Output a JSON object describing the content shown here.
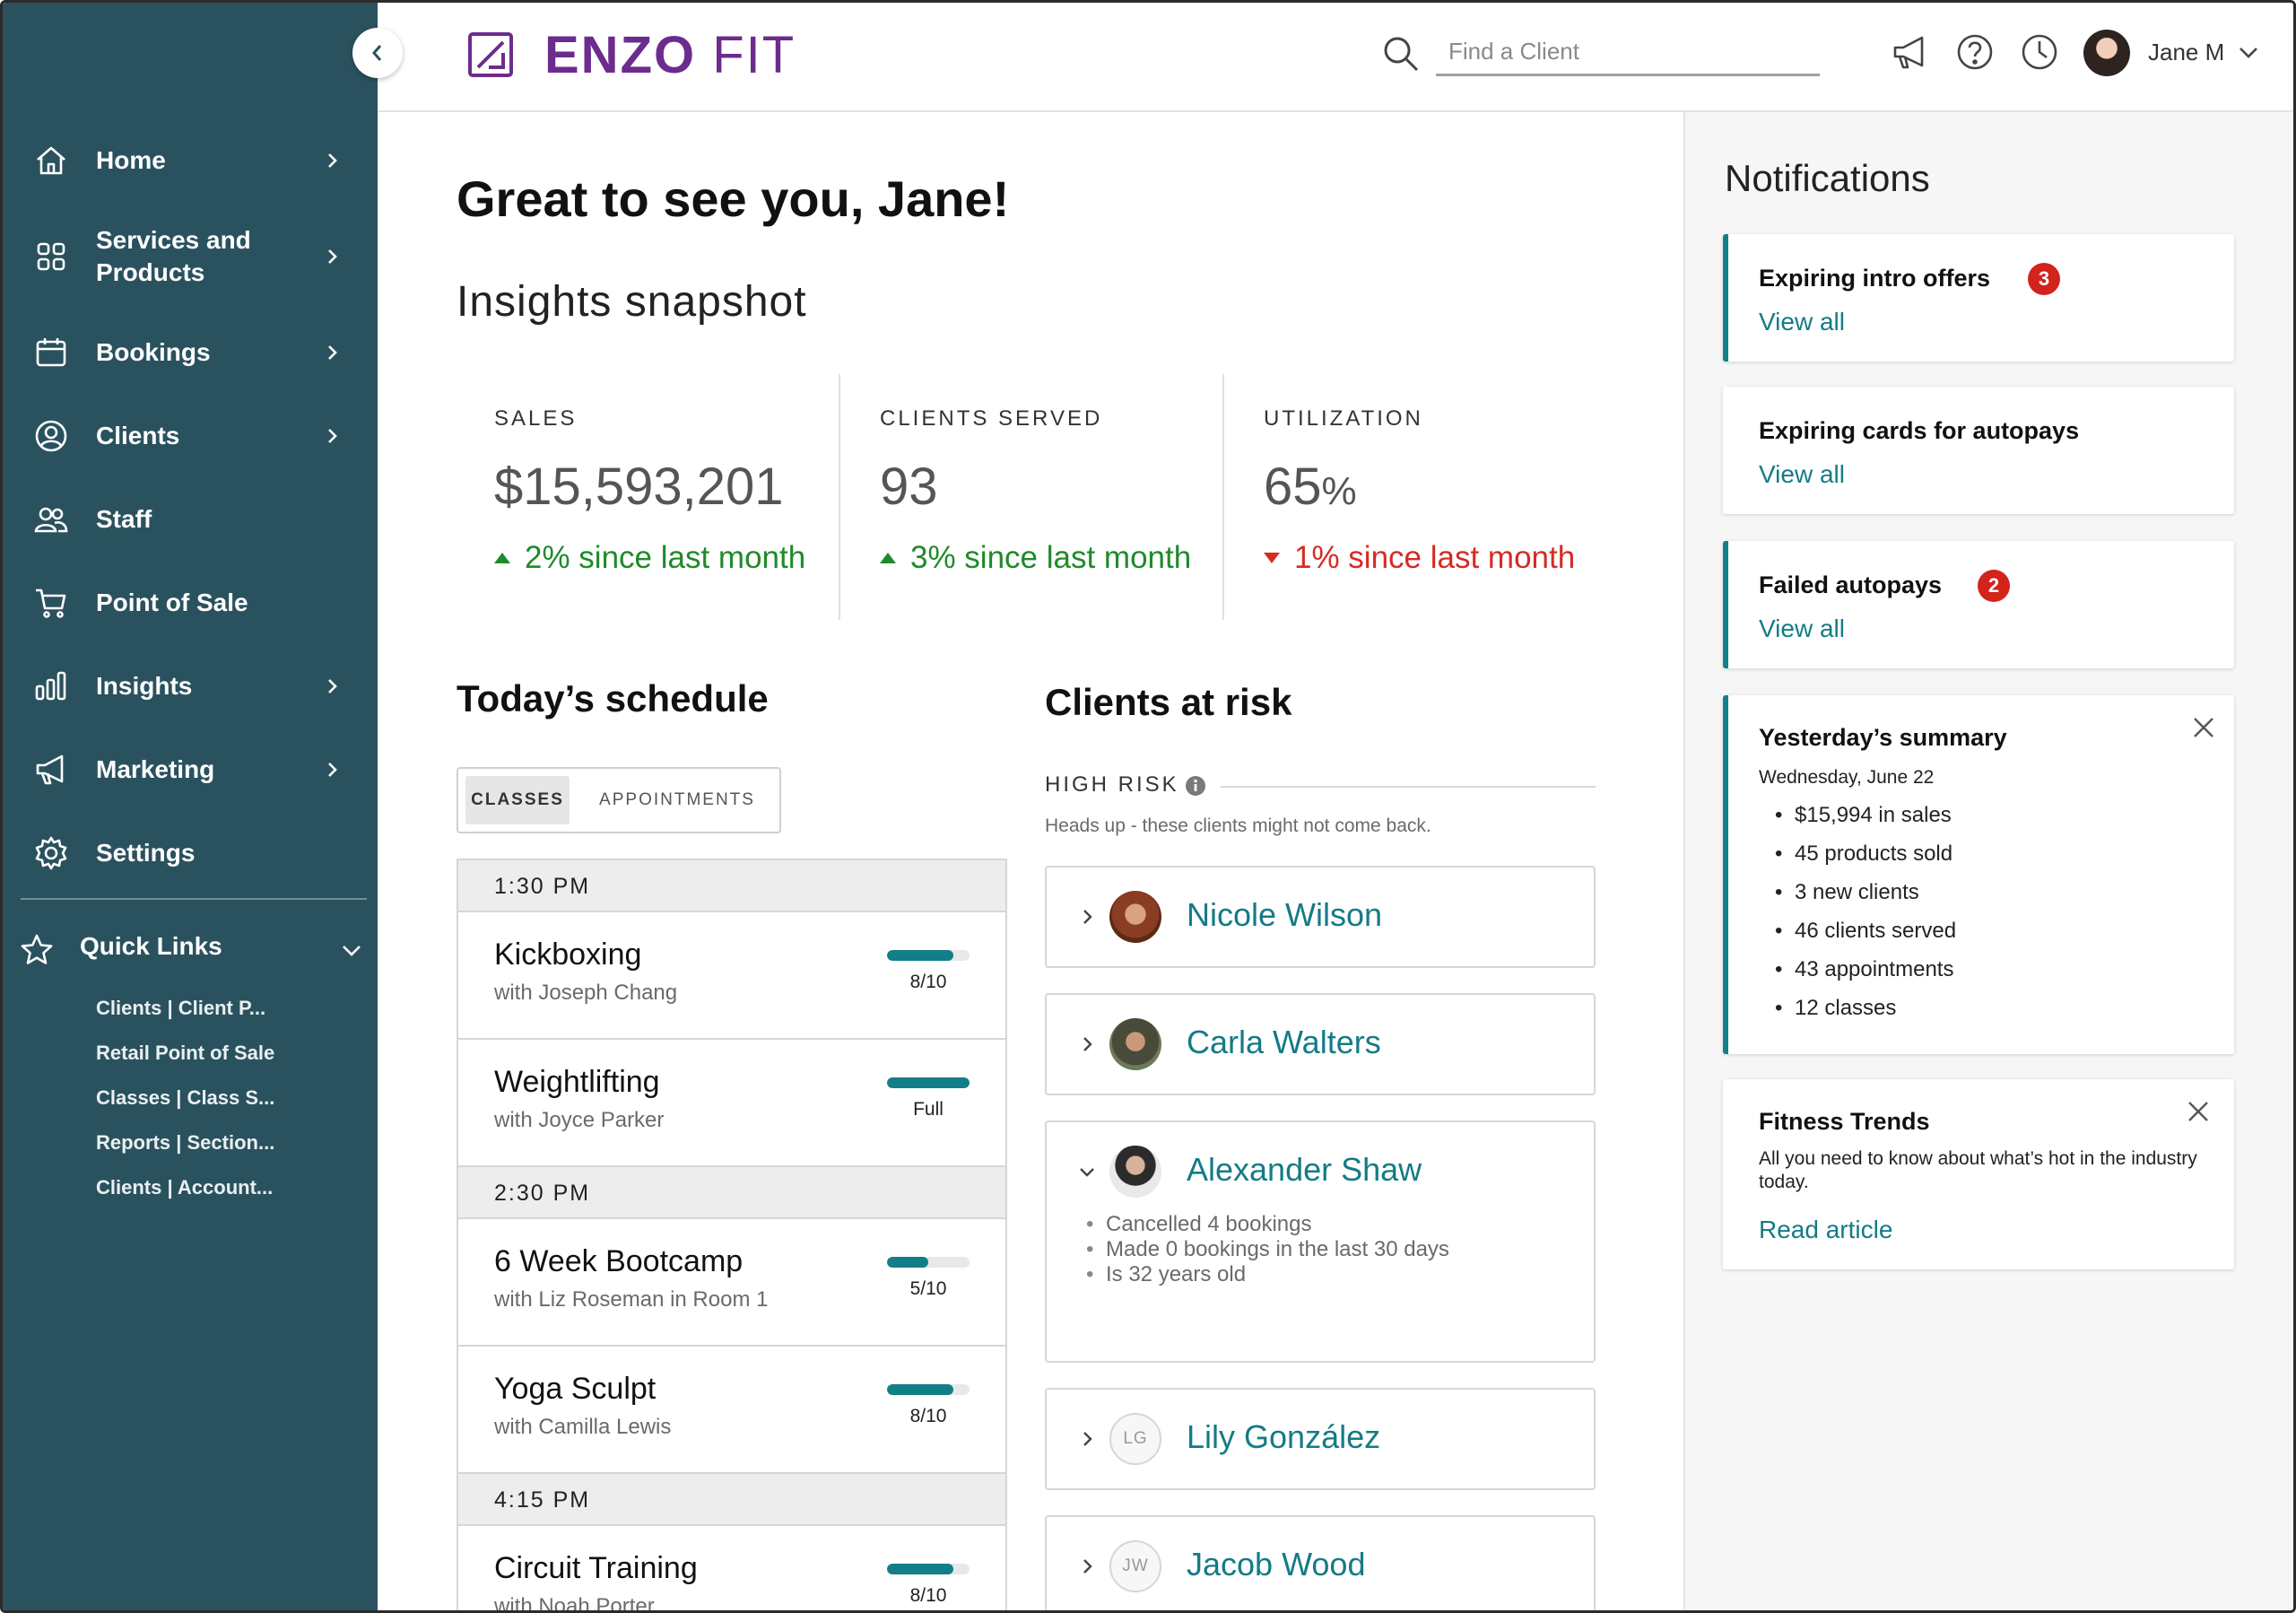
{
  "sidebar": {
    "items": [
      {
        "label": "Home",
        "icon": "home-icon",
        "chevron": true
      },
      {
        "label": "Services and\nProducts",
        "icon": "grid-icon",
        "chevron": true
      },
      {
        "label": "Bookings",
        "icon": "calendar-icon",
        "chevron": true
      },
      {
        "label": "Clients",
        "icon": "user-circle-icon",
        "chevron": true
      },
      {
        "label": "Staff",
        "icon": "staff-icon",
        "chevron": false
      },
      {
        "label": "Point of Sale",
        "icon": "cart-icon",
        "chevron": false
      },
      {
        "label": "Insights",
        "icon": "bar-chart-icon",
        "chevron": true
      },
      {
        "label": "Marketing",
        "icon": "megaphone-icon",
        "chevron": true
      },
      {
        "label": "Settings",
        "icon": "gear-icon",
        "chevron": false
      }
    ],
    "quick_links": {
      "title": "Quick Links",
      "links": [
        "Clients | Client P...",
        "Retail Point of Sale",
        "Classes | Class S...",
        "Reports | Section...",
        "Clients | Account..."
      ]
    }
  },
  "header": {
    "logo_bold": "ENZO",
    "logo_light": " FIT",
    "search_placeholder": "Find a Client",
    "user_name": "Jane M"
  },
  "main": {
    "greeting": "Great to see you, Jane!",
    "insights_title": "Insights snapshot",
    "metrics": [
      {
        "label": "SALES",
        "value": "$15,593,201",
        "change": "2% since last month",
        "direction": "up"
      },
      {
        "label": "CLIENTS SERVED",
        "value": "93",
        "change": "3% since last month",
        "direction": "up"
      },
      {
        "label": "UTILIZATION",
        "value": "65",
        "unit": "%",
        "change": "1% since last month",
        "direction": "down"
      }
    ],
    "schedule": {
      "title": "Today’s schedule",
      "tabs": [
        "CLASSES",
        "APPOINTMENTS"
      ],
      "active_tab": "CLASSES",
      "times": [
        "1:30 PM",
        "2:30 PM",
        "4:15 PM"
      ],
      "classes": [
        {
          "name": "Kickboxing",
          "sub": "with Joseph Chang",
          "capacity": "8/10",
          "fill": 0.8
        },
        {
          "name": "Weightlifting",
          "sub": "with Joyce Parker",
          "capacity": "Full",
          "fill": 1.0
        },
        {
          "name": "6 Week Bootcamp",
          "sub": "with Liz Roseman in Room 1",
          "capacity": "5/10",
          "fill": 0.5
        },
        {
          "name": "Yoga Sculpt",
          "sub": "with Camilla Lewis",
          "capacity": "8/10",
          "fill": 0.8
        },
        {
          "name": "Circuit Training",
          "sub": "with Noah Porter",
          "capacity": "8/10",
          "fill": 0.8
        }
      ]
    },
    "risk": {
      "title": "Clients at risk",
      "label": "HIGH RISK",
      "desc": "Heads up - these clients might not come back.",
      "clients": [
        {
          "name": "Nicole Wilson"
        },
        {
          "name": "Carla Walters"
        },
        {
          "name": "Alexander Shaw",
          "details": [
            "Cancelled 4 bookings",
            "Made 0 bookings in the last 30 days",
            "Is 32 years old"
          ]
        },
        {
          "name": "Lily González",
          "initials": "LG"
        },
        {
          "name": "Jacob Wood",
          "initials": "JW"
        }
      ]
    }
  },
  "notifications": {
    "title": "Notifications",
    "view_all": "View all",
    "intro_offers": {
      "title": "Expiring intro offers",
      "count": "3"
    },
    "autopay_cards": {
      "title": "Expiring cards for autopays"
    },
    "failed_autopays": {
      "title": "Failed autopays",
      "count": "2"
    },
    "summary": {
      "title": "Yesterday’s summary",
      "date": "Wednesday, June 22",
      "items": [
        "$15,994 in sales",
        "45 products sold",
        "3 new clients",
        "46 clients served",
        "43 appointments",
        "12 classes"
      ]
    },
    "trends": {
      "title": "Fitness Trends",
      "body": "All you need to know about what’s hot in the industry today.",
      "link": "Read article"
    }
  },
  "colors": {
    "sidebar": "#2a525e",
    "accent": "#127e88",
    "brand": "#6c2c8e",
    "positive": "#1f8a2a",
    "negative": "#d62b25",
    "badge": "#d2231c"
  }
}
